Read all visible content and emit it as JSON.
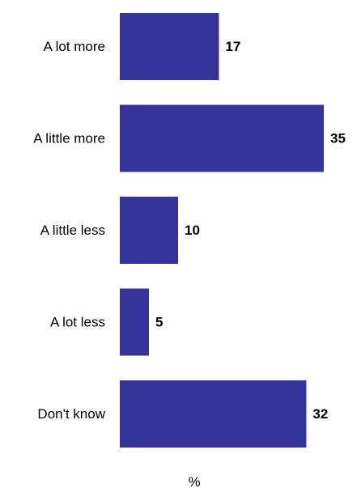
{
  "chart_data": {
    "type": "bar",
    "orientation": "horizontal",
    "title": "",
    "xlabel": "%",
    "ylabel": "",
    "categories": [
      "A lot more",
      "A little more",
      "A little less",
      "A lot less",
      "Don't know"
    ],
    "values": [
      17,
      35,
      10,
      5,
      32
    ],
    "value_labels": [
      "17",
      "35",
      "10",
      "5",
      "32"
    ],
    "xlim": [
      0,
      35
    ],
    "grid": false,
    "legend": "none",
    "bar_color": "#333399"
  }
}
